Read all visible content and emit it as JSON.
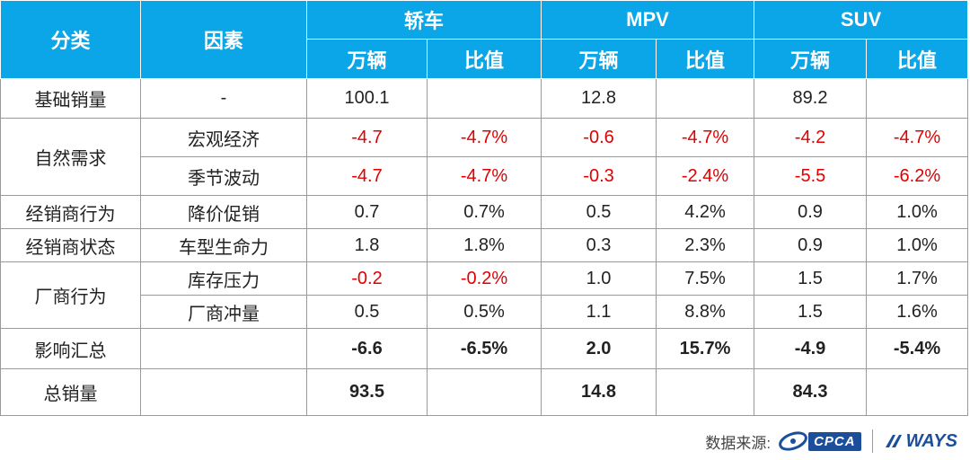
{
  "header": {
    "category": "分类",
    "factor": "因素",
    "groups": [
      "轿车",
      "MPV",
      "SUV"
    ],
    "unit": "万辆",
    "ratio": "比值"
  },
  "rows": [
    {
      "cat": "基础销量",
      "factor": "-",
      "values": [
        "100.1",
        "",
        "12.8",
        "",
        "89.2",
        ""
      ]
    },
    {
      "cat": "自然需求",
      "factor": "宏观经济",
      "values": [
        "-4.7",
        "-4.7%",
        "-0.6",
        "-4.7%",
        "-4.2",
        "-4.7%"
      ]
    },
    {
      "factor": "季节波动",
      "values": [
        "-4.7",
        "-4.7%",
        "-0.3",
        "-2.4%",
        "-5.5",
        "-6.2%"
      ]
    },
    {
      "cat": "经销商行为",
      "factor": "降价促销",
      "values": [
        "0.7",
        "0.7%",
        "0.5",
        "4.2%",
        "0.9",
        "1.0%"
      ]
    },
    {
      "cat": "经销商状态",
      "factor": "车型生命力",
      "values": [
        "1.8",
        "1.8%",
        "0.3",
        "2.3%",
        "0.9",
        "1.0%"
      ]
    },
    {
      "cat": "厂商行为",
      "factor": "库存压力",
      "values": [
        "-0.2",
        "-0.2%",
        "1.0",
        "7.5%",
        "1.5",
        "1.7%"
      ]
    },
    {
      "factor": "厂商冲量",
      "values": [
        "0.5",
        "0.5%",
        "1.1",
        "8.8%",
        "1.5",
        "1.6%"
      ]
    },
    {
      "cat": "影响汇总",
      "factor": "",
      "values": [
        "-6.6",
        "-6.5%",
        "2.0",
        "15.7%",
        "-4.9",
        "-5.4%"
      ]
    },
    {
      "cat": "总销量",
      "factor": "",
      "values": [
        "93.5",
        "",
        "14.8",
        "",
        "84.3",
        ""
      ]
    }
  ],
  "footer": {
    "source_label": "数据来源:",
    "logo1": "CPCA",
    "logo2": "WAYS"
  },
  "colors": {
    "header_bg": "#0aa6e8",
    "negative": "#e00000",
    "logo": "#1b4f9c"
  }
}
